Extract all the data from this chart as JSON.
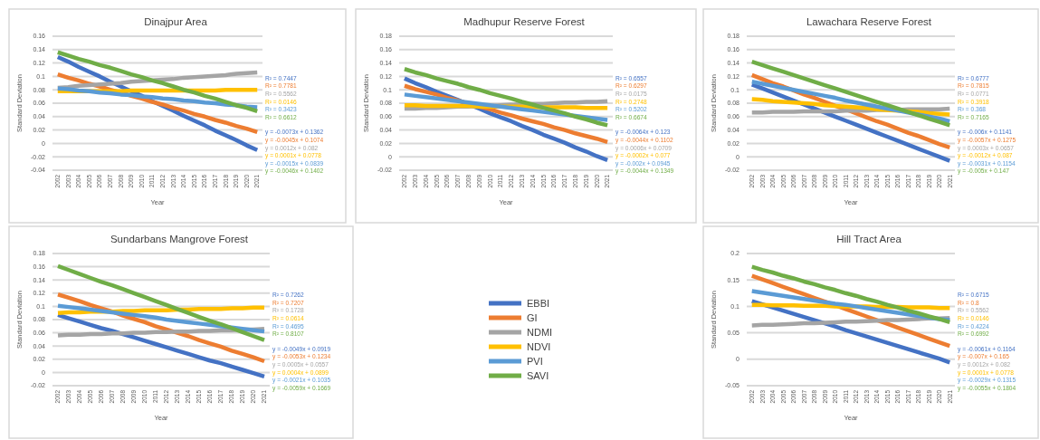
{
  "chart_data": [
    {
      "type": "line",
      "title": "Dinajpur Area",
      "xlabel": "Year",
      "ylabel": "Standard Deviation",
      "categories": [
        "2002",
        "2003",
        "2004",
        "2005",
        "2006",
        "2007",
        "2008",
        "2009",
        "2010",
        "2011",
        "2012",
        "2013",
        "2014",
        "2015",
        "2016",
        "2017",
        "2018",
        "2019",
        "2020",
        "2021"
      ],
      "ylim": [
        -0.04,
        0.16
      ],
      "yticks": [
        -0.04,
        -0.02,
        0,
        0.02,
        0.04,
        0.06,
        0.08,
        0.1,
        0.12,
        0.14,
        0.16
      ],
      "grid": "y",
      "legend": "bottom right",
      "series": [
        {
          "name": "EBBI",
          "color": "#4472c4",
          "values": [
            0.129,
            0.122,
            0.114,
            0.107,
            0.1,
            0.092,
            0.085,
            0.078,
            0.071,
            0.063,
            0.056,
            0.049,
            0.041,
            0.034,
            0.027,
            0.019,
            0.012,
            0.005,
            -0.003,
            -0.01
          ]
        },
        {
          "name": "GI",
          "color": "#ed7d31",
          "values": [
            0.103,
            0.098,
            0.094,
            0.089,
            0.085,
            0.08,
            0.076,
            0.071,
            0.067,
            0.062,
            0.058,
            0.053,
            0.049,
            0.044,
            0.04,
            0.035,
            0.031,
            0.026,
            0.022,
            0.017
          ]
        },
        {
          "name": "NDMI",
          "color": "#a5a5a5",
          "values": [
            0.083,
            0.084,
            0.086,
            0.087,
            0.088,
            0.089,
            0.09,
            0.092,
            0.093,
            0.094,
            0.095,
            0.096,
            0.098,
            0.099,
            0.1,
            0.101,
            0.102,
            0.104,
            0.105,
            0.106
          ]
        },
        {
          "name": "NDVI",
          "color": "#ffc000",
          "values": [
            0.078,
            0.078,
            0.078,
            0.078,
            0.078,
            0.078,
            0.078,
            0.079,
            0.079,
            0.079,
            0.079,
            0.079,
            0.079,
            0.079,
            0.079,
            0.079,
            0.08,
            0.08,
            0.08,
            0.08
          ]
        },
        {
          "name": "PVI",
          "color": "#5b9bd5",
          "values": [
            0.082,
            0.081,
            0.079,
            0.078,
            0.076,
            0.075,
            0.073,
            0.072,
            0.07,
            0.069,
            0.067,
            0.066,
            0.064,
            0.063,
            0.061,
            0.06,
            0.058,
            0.057,
            0.055,
            0.054
          ]
        },
        {
          "name": "SAVI",
          "color": "#70ad47",
          "values": [
            0.136,
            0.131,
            0.126,
            0.122,
            0.117,
            0.113,
            0.108,
            0.103,
            0.099,
            0.094,
            0.09,
            0.085,
            0.08,
            0.076,
            0.071,
            0.067,
            0.062,
            0.057,
            0.053,
            0.048
          ]
        }
      ],
      "annotations": [
        "R² = 0.7447",
        "R² = 0.7781",
        "R² = 0.5562",
        "R² = 0.0146",
        "R² = 0.3423",
        "R² = 0.6612",
        "y = -0.0073x + 0.1362",
        "y = -0.0045x + 0.1074",
        "y = 0.0012x + 0.082",
        "y = 0.0001x + 0.0778",
        "y = -0.0015x + 0.0839",
        "y = -0.0046x + 0.1402"
      ]
    },
    {
      "type": "line",
      "title": "Madhupur Reserve Forest",
      "xlabel": "Year",
      "ylabel": "Standard Deviation",
      "categories": [
        "2002",
        "2003",
        "2004",
        "2005",
        "2006",
        "2007",
        "2008",
        "2009",
        "2010",
        "2011",
        "2012",
        "2013",
        "2014",
        "2015",
        "2016",
        "2017",
        "2018",
        "2019",
        "2020",
        "2021"
      ],
      "ylim": [
        -0.02,
        0.18
      ],
      "yticks": [
        -0.02,
        0,
        0.02,
        0.04,
        0.06,
        0.08,
        0.1,
        0.12,
        0.14,
        0.16,
        0.18
      ],
      "grid": "y",
      "series": [
        {
          "color": "#4472c4",
          "values": [
            0.117,
            0.11,
            0.104,
            0.097,
            0.091,
            0.085,
            0.078,
            0.072,
            0.065,
            0.059,
            0.053,
            0.046,
            0.04,
            0.033,
            0.027,
            0.021,
            0.014,
            0.008,
            0.001,
            -0.005
          ]
        },
        {
          "color": "#ed7d31",
          "values": [
            0.106,
            0.101,
            0.097,
            0.093,
            0.088,
            0.084,
            0.079,
            0.075,
            0.071,
            0.066,
            0.062,
            0.057,
            0.053,
            0.049,
            0.044,
            0.04,
            0.035,
            0.031,
            0.027,
            0.022
          ]
        },
        {
          "color": "#a5a5a5",
          "values": [
            0.072,
            0.072,
            0.073,
            0.073,
            0.074,
            0.075,
            0.075,
            0.076,
            0.076,
            0.077,
            0.078,
            0.078,
            0.079,
            0.079,
            0.08,
            0.081,
            0.081,
            0.082,
            0.082,
            0.083
          ]
        },
        {
          "color": "#ffc000",
          "values": [
            0.077,
            0.077,
            0.076,
            0.076,
            0.076,
            0.076,
            0.076,
            0.075,
            0.075,
            0.075,
            0.075,
            0.075,
            0.074,
            0.074,
            0.074,
            0.074,
            0.074,
            0.073,
            0.073,
            0.073
          ]
        },
        {
          "color": "#5b9bd5",
          "values": [
            0.093,
            0.091,
            0.089,
            0.087,
            0.085,
            0.083,
            0.081,
            0.079,
            0.077,
            0.075,
            0.073,
            0.071,
            0.069,
            0.067,
            0.065,
            0.063,
            0.061,
            0.059,
            0.057,
            0.055
          ]
        },
        {
          "color": "#70ad47",
          "values": [
            0.131,
            0.126,
            0.122,
            0.117,
            0.113,
            0.109,
            0.104,
            0.1,
            0.095,
            0.091,
            0.087,
            0.082,
            0.078,
            0.073,
            0.069,
            0.065,
            0.06,
            0.056,
            0.051,
            0.047
          ]
        }
      ],
      "annotations": [
        "R² = 0.6557",
        "R² = 0.6297",
        "R² = 0.0175",
        "R² = 0.2748",
        "R² = 0.5202",
        "R² = 0.6674",
        "y = -0.0064x + 0.123",
        "y = -0.0044x + 0.1102",
        "y = 0.0006x + 0.0709",
        "y = -0.0002x + 0.077",
        "y = -0.002x + 0.0945",
        "y = -0.0044x + 0.1349"
      ]
    },
    {
      "type": "line",
      "title": "Lawachara Reserve Forest",
      "xlabel": "Year",
      "ylabel": "Standard Deviation",
      "categories": [
        "2002",
        "2003",
        "2004",
        "2005",
        "2006",
        "2007",
        "2008",
        "2009",
        "2010",
        "2011",
        "2012",
        "2013",
        "2014",
        "2015",
        "2016",
        "2017",
        "2018",
        "2019",
        "2020",
        "2021"
      ],
      "ylim": [
        -0.02,
        0.18
      ],
      "yticks": [
        -0.02,
        0,
        0.02,
        0.04,
        0.06,
        0.08,
        0.1,
        0.12,
        0.14,
        0.16,
        0.18
      ],
      "grid": "y",
      "series": [
        {
          "color": "#4472c4",
          "values": [
            0.108,
            0.102,
            0.096,
            0.09,
            0.084,
            0.078,
            0.072,
            0.066,
            0.06,
            0.054,
            0.048,
            0.042,
            0.036,
            0.03,
            0.024,
            0.018,
            0.012,
            0.006,
            0.0,
            -0.006
          ]
        },
        {
          "color": "#ed7d31",
          "values": [
            0.122,
            0.116,
            0.11,
            0.105,
            0.099,
            0.093,
            0.088,
            0.082,
            0.076,
            0.071,
            0.065,
            0.059,
            0.053,
            0.048,
            0.042,
            0.036,
            0.031,
            0.025,
            0.019,
            0.014
          ]
        },
        {
          "color": "#a5a5a5",
          "values": [
            0.066,
            0.066,
            0.067,
            0.067,
            0.067,
            0.068,
            0.068,
            0.068,
            0.068,
            0.069,
            0.069,
            0.069,
            0.07,
            0.07,
            0.07,
            0.071,
            0.071,
            0.071,
            0.071,
            0.072
          ]
        },
        {
          "color": "#ffc000",
          "values": [
            0.086,
            0.085,
            0.083,
            0.082,
            0.081,
            0.08,
            0.079,
            0.077,
            0.076,
            0.075,
            0.074,
            0.073,
            0.071,
            0.07,
            0.069,
            0.068,
            0.067,
            0.065,
            0.064,
            0.063
          ]
        },
        {
          "color": "#5b9bd5",
          "values": [
            0.112,
            0.109,
            0.106,
            0.103,
            0.1,
            0.097,
            0.094,
            0.091,
            0.088,
            0.084,
            0.081,
            0.078,
            0.075,
            0.072,
            0.069,
            0.066,
            0.063,
            0.06,
            0.057,
            0.053
          ]
        },
        {
          "color": "#70ad47",
          "values": [
            0.142,
            0.137,
            0.132,
            0.127,
            0.122,
            0.117,
            0.112,
            0.107,
            0.102,
            0.097,
            0.092,
            0.087,
            0.082,
            0.077,
            0.072,
            0.067,
            0.062,
            0.057,
            0.052,
            0.047
          ]
        }
      ],
      "annotations": [
        "R² = 0.6777",
        "R² = 0.7815",
        "R² = 0.0771",
        "R² = 0.3918",
        "R² = 0.368",
        "R² = 0.7165",
        "y = -0.006x + 0.1141",
        "y = -0.0057x + 0.1275",
        "y = 0.0003x + 0.0657",
        "y = -0.0012x + 0.087",
        "y = -0.0031x + 0.1154",
        "y = -0.005x + 0.147"
      ]
    },
    {
      "type": "line",
      "title": "Sundarbans Mangrove Forest",
      "xlabel": "Year",
      "ylabel": "Standard Deviation",
      "categories": [
        "2002",
        "2003",
        "2004",
        "2005",
        "2006",
        "2007",
        "2008",
        "2009",
        "2010",
        "2011",
        "2012",
        "2013",
        "2014",
        "2015",
        "2016",
        "2017",
        "2018",
        "2019",
        "2020",
        "2021"
      ],
      "ylim": [
        -0.02,
        0.18
      ],
      "yticks": [
        -0.02,
        0,
        0.02,
        0.04,
        0.06,
        0.08,
        0.1,
        0.12,
        0.14,
        0.16,
        0.18
      ],
      "grid": "y",
      "series": [
        {
          "color": "#4472c4",
          "values": [
            0.087,
            0.082,
            0.077,
            0.072,
            0.067,
            0.063,
            0.058,
            0.053,
            0.048,
            0.043,
            0.038,
            0.033,
            0.028,
            0.023,
            0.018,
            0.014,
            0.009,
            0.004,
            -0.001,
            -0.006
          ]
        },
        {
          "color": "#ed7d31",
          "values": [
            0.118,
            0.113,
            0.108,
            0.102,
            0.097,
            0.092,
            0.086,
            0.081,
            0.076,
            0.07,
            0.065,
            0.06,
            0.055,
            0.049,
            0.044,
            0.039,
            0.033,
            0.028,
            0.023,
            0.017
          ]
        },
        {
          "color": "#a5a5a5",
          "values": [
            0.056,
            0.057,
            0.057,
            0.058,
            0.058,
            0.059,
            0.059,
            0.06,
            0.06,
            0.061,
            0.061,
            0.062,
            0.062,
            0.063,
            0.063,
            0.064,
            0.064,
            0.065,
            0.065,
            0.066
          ]
        },
        {
          "color": "#ffc000",
          "values": [
            0.09,
            0.091,
            0.091,
            0.092,
            0.092,
            0.092,
            0.093,
            0.093,
            0.094,
            0.094,
            0.094,
            0.095,
            0.095,
            0.096,
            0.096,
            0.096,
            0.097,
            0.097,
            0.098,
            0.098
          ]
        },
        {
          "color": "#5b9bd5",
          "values": [
            0.101,
            0.099,
            0.097,
            0.095,
            0.093,
            0.091,
            0.089,
            0.087,
            0.085,
            0.083,
            0.08,
            0.078,
            0.076,
            0.074,
            0.072,
            0.07,
            0.068,
            0.066,
            0.064,
            0.062
          ]
        },
        {
          "color": "#70ad47",
          "values": [
            0.161,
            0.155,
            0.149,
            0.143,
            0.137,
            0.132,
            0.126,
            0.12,
            0.114,
            0.108,
            0.102,
            0.096,
            0.09,
            0.084,
            0.078,
            0.073,
            0.067,
            0.061,
            0.055,
            0.049
          ]
        }
      ],
      "annotations": [
        "R² = 0.7262",
        "R² = 0.7207",
        "R² = 0.1728",
        "R² = 0.0614",
        "R² = 0.4695",
        "R² = 0.8107",
        "y = -0.0049x + 0.0919",
        "y = -0.0053x + 0.1234",
        "y = 0.0005x + 0.0557",
        "y = 0.0004x + 0.0899",
        "y = -0.0021x + 0.1035",
        "y = -0.0059x + 0.1669"
      ]
    },
    {
      "type": "line",
      "title": "Hill Tract Area",
      "xlabel": "Year",
      "ylabel": "Standard Deviation",
      "categories": [
        "2002",
        "2003",
        "2004",
        "2005",
        "2006",
        "2007",
        "2008",
        "2009",
        "2010",
        "2011",
        "2012",
        "2013",
        "2014",
        "2015",
        "2016",
        "2017",
        "2018",
        "2019",
        "2020",
        "2021"
      ],
      "ylim": [
        -0.05,
        0.2
      ],
      "yticks": [
        -0.05,
        0,
        0.05,
        0.1,
        0.15,
        0.2
      ],
      "grid": "y",
      "series": [
        {
          "color": "#4472c4",
          "values": [
            0.11,
            0.104,
            0.098,
            0.092,
            0.086,
            0.08,
            0.074,
            0.068,
            0.062,
            0.055,
            0.049,
            0.043,
            0.037,
            0.031,
            0.025,
            0.019,
            0.013,
            0.007,
            0.001,
            -0.006
          ]
        },
        {
          "color": "#ed7d31",
          "values": [
            0.158,
            0.151,
            0.144,
            0.137,
            0.13,
            0.123,
            0.116,
            0.109,
            0.102,
            0.095,
            0.088,
            0.081,
            0.074,
            0.067,
            0.06,
            0.053,
            0.046,
            0.039,
            0.032,
            0.025
          ]
        },
        {
          "color": "#a5a5a5",
          "values": [
            0.064,
            0.065,
            0.065,
            0.066,
            0.067,
            0.068,
            0.068,
            0.069,
            0.07,
            0.071,
            0.071,
            0.072,
            0.073,
            0.074,
            0.074,
            0.075,
            0.076,
            0.077,
            0.077,
            0.078
          ]
        },
        {
          "color": "#ffc000",
          "values": [
            0.103,
            0.103,
            0.102,
            0.102,
            0.102,
            0.101,
            0.101,
            0.101,
            0.1,
            0.1,
            0.1,
            0.1,
            0.099,
            0.099,
            0.099,
            0.098,
            0.098,
            0.098,
            0.097,
            0.097
          ]
        },
        {
          "color": "#5b9bd5",
          "values": [
            0.129,
            0.126,
            0.123,
            0.12,
            0.117,
            0.114,
            0.111,
            0.108,
            0.105,
            0.103,
            0.1,
            0.097,
            0.094,
            0.091,
            0.088,
            0.085,
            0.082,
            0.079,
            0.076,
            0.074
          ]
        },
        {
          "color": "#70ad47",
          "values": [
            0.175,
            0.169,
            0.164,
            0.158,
            0.153,
            0.147,
            0.142,
            0.136,
            0.131,
            0.125,
            0.12,
            0.114,
            0.109,
            0.103,
            0.098,
            0.092,
            0.087,
            0.081,
            0.076,
            0.07
          ]
        }
      ],
      "annotations": [
        "R² = 0.6715",
        "R² = 0.8",
        "R² = 0.5562",
        "R² = 0.0146",
        "R² = 0.4224",
        "R² = 0.6992",
        "y = -0.0061x + 0.1164",
        "y = -0.007x + 0.165",
        "y = 0.0012x + 0.082",
        "y = 0.0001x + 0.0778",
        "y = -0.0029x + 0.1315",
        "y = -0.0055x + 0.1804"
      ]
    }
  ]
}
